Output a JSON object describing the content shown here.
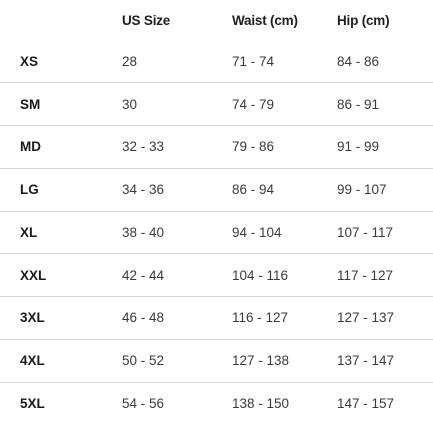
{
  "table": {
    "headers": [
      "",
      "US Size",
      "Waist (cm)",
      "Hip (cm)"
    ],
    "rows": [
      {
        "size": "XS",
        "us": "28",
        "waist": "71 - 74",
        "hip": "84 - 86"
      },
      {
        "size": "SM",
        "us": "30",
        "waist": "74 - 79",
        "hip": "86 - 91"
      },
      {
        "size": "MD",
        "us": "32 - 33",
        "waist": "79 - 86",
        "hip": "91 - 99"
      },
      {
        "size": "LG",
        "us": "34 - 36",
        "waist": "86 - 94",
        "hip": "99 - 107"
      },
      {
        "size": "XL",
        "us": "38 - 40",
        "waist": "94 - 104",
        "hip": "107 - 117"
      },
      {
        "size": "XXL",
        "us": "42 - 44",
        "waist": "104 - 116",
        "hip": "117 - 127"
      },
      {
        "size": "3XL",
        "us": "46 - 48",
        "waist": "116 - 127",
        "hip": "127 - 137"
      },
      {
        "size": "4XL",
        "us": "50 - 52",
        "waist": "127 - 138",
        "hip": "137 - 147"
      },
      {
        "size": "5XL",
        "us": "54 - 56",
        "waist": "138 - 150",
        "hip": "147 - 157"
      }
    ]
  },
  "colors": {
    "text": "#1f1f1f",
    "divider": "#d6d6d6",
    "background": "#ffffff"
  }
}
